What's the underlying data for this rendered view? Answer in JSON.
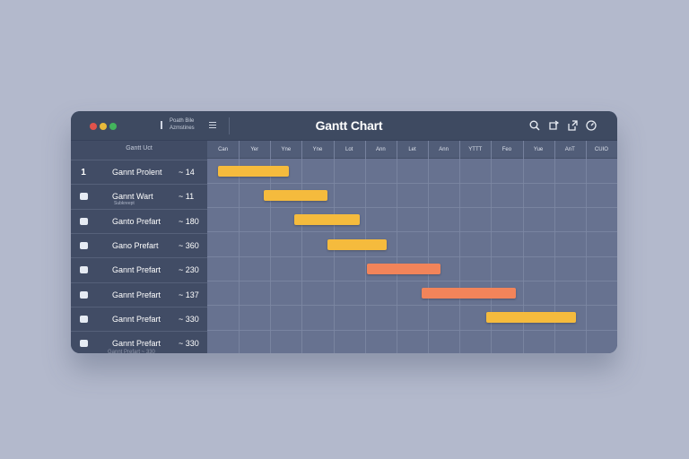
{
  "window": {
    "title": "Gantt Chart",
    "toolbar_label": "Poath Bile Azmstines",
    "icons": [
      "search-icon",
      "refresh-icon",
      "share-icon",
      "dashboard-icon"
    ]
  },
  "sidebar": {
    "header": "Gantt Uct",
    "rows": [
      {
        "num": "1",
        "name": "Gannt Prolent",
        "sub": "",
        "value": "~ 14"
      },
      {
        "num": "",
        "name": "Gannt Wart",
        "sub": "Subkreept",
        "value": "~ 11"
      },
      {
        "num": "",
        "name": "Ganto Prefart",
        "sub": "",
        "value": "~ 180"
      },
      {
        "num": "",
        "name": "Gano Prefart",
        "sub": "",
        "value": "~ 360"
      },
      {
        "num": "",
        "name": "Gannt Prefart",
        "sub": "",
        "value": "~ 230"
      },
      {
        "num": "",
        "name": "Gannt Prefart",
        "sub": "",
        "value": "~ 137"
      },
      {
        "num": "",
        "name": "Gannt Prefart",
        "sub": "",
        "value": "~ 330"
      },
      {
        "num": "",
        "name": "Gannt Prefart",
        "sub": "",
        "value": "~ 330"
      }
    ],
    "ghost": "Gannt Prefart  ~ 330"
  },
  "timeline": {
    "columns": [
      "Can",
      "Yer",
      "Yne",
      "Yne",
      "Lot",
      "Ann",
      "Let",
      "Ann",
      "YTTT",
      "Feo",
      "Yue",
      "AnT",
      "CUIO"
    ]
  },
  "tasks": [
    {
      "start": 0.35,
      "end": 2.6,
      "color": "#f5bb3d"
    },
    {
      "start": 1.8,
      "end": 3.8,
      "color": "#f5bb3d"
    },
    {
      "start": 2.75,
      "end": 4.85,
      "color": "#f5bb3d"
    },
    {
      "start": 3.8,
      "end": 5.7,
      "color": "#f5bb3d"
    },
    {
      "start": 5.05,
      "end": 7.4,
      "color": "#f2845a"
    },
    {
      "start": 6.8,
      "end": 9.8,
      "color": "#f2845a"
    },
    {
      "start": 8.85,
      "end": 11.7,
      "color": "#f5bb3d"
    }
  ]
}
